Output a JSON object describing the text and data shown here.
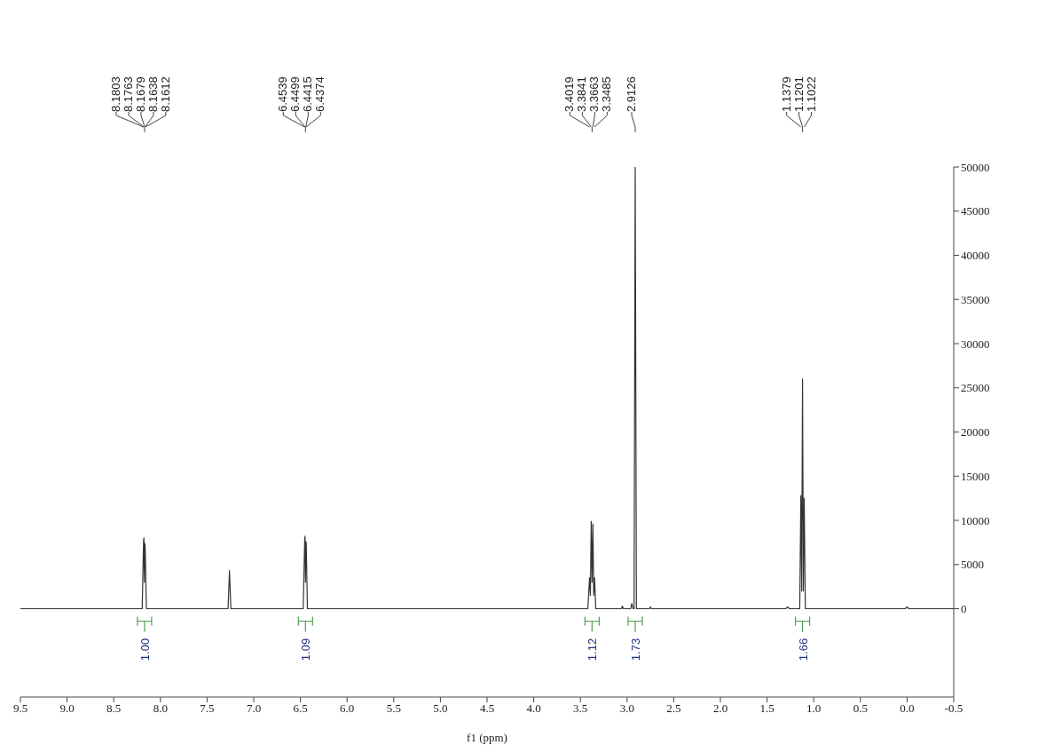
{
  "chart_data": {
    "type": "line",
    "xlabel": "f1 (ppm)",
    "x": [
      9.5,
      8.195,
      8.1803,
      8.1763,
      8.1718,
      8.1679,
      8.1638,
      8.1612,
      8.15,
      7.275,
      7.26,
      7.245,
      6.47,
      6.4539,
      6.4499,
      6.4457,
      6.4415,
      6.4374,
      6.425,
      3.42,
      3.4019,
      3.393,
      3.3841,
      3.375,
      3.3663,
      3.357,
      3.3485,
      3.335,
      3.06,
      3.05,
      3.04,
      2.96,
      2.95,
      2.935,
      2.925,
      2.9126,
      2.9,
      2.76,
      2.75,
      2.74,
      1.3,
      1.28,
      1.26,
      1.15,
      1.1379,
      1.129,
      1.1201,
      1.111,
      1.1022,
      1.09,
      0.02,
      0,
      -0.02,
      -0.5
    ],
    "series": [
      {
        "color": "#333333",
        "values": [
          0,
          0,
          7700,
          8000,
          3000,
          7400,
          7200,
          6000,
          0,
          0,
          4300,
          0,
          0,
          7800,
          8200,
          3000,
          7600,
          7400,
          0,
          0,
          3500,
          1500,
          9900,
          3000,
          9600,
          1500,
          3500,
          0,
          0,
          300,
          0,
          0,
          600,
          0,
          0,
          50000,
          0,
          0,
          200,
          0,
          0,
          200,
          0,
          0,
          12800,
          2000,
          26000,
          2000,
          12500,
          0,
          0,
          200,
          0,
          0
        ]
      }
    ],
    "xlim": [
      9.5,
      -0.5
    ],
    "xticks": [
      9.5,
      {
        "value": 9,
        "label": "9.0"
      },
      8.5,
      {
        "value": 8,
        "label": "8.0"
      },
      7.5,
      {
        "value": 7,
        "label": "7.0"
      },
      6.5,
      {
        "value": 6,
        "label": "6.0"
      },
      5.5,
      {
        "value": 5,
        "label": "5.0"
      },
      4.5,
      {
        "value": 4,
        "label": "4.0"
      },
      3.5,
      {
        "value": 3,
        "label": "3.0"
      },
      2.5,
      {
        "value": 2,
        "label": "2.0"
      },
      1.5,
      {
        "value": 1,
        "label": "1.0"
      },
      0.5,
      {
        "value": 0,
        "label": "0.0"
      },
      -0.5
    ],
    "ylim": [
      -10000,
      50000
    ],
    "yticks": [
      0,
      5000,
      10000,
      15000,
      20000,
      25000,
      30000,
      35000,
      40000,
      45000,
      50000
    ],
    "grid": false,
    "marker": "none",
    "line_style": "solid",
    "annotations": [
      {
        "text": "8.1803",
        "x": 8.1803
      },
      {
        "text": "8.1763",
        "x": 8.1763
      },
      {
        "text": "8.1679",
        "x": 8.1679
      },
      {
        "text": "8.1638",
        "x": 8.1638
      },
      {
        "text": "8.1612",
        "x": 8.1612
      },
      {
        "text": "6.4539",
        "x": 6.4539
      },
      {
        "text": "6.4499",
        "x": 6.4499
      },
      {
        "text": "6.4415",
        "x": 6.4415
      },
      {
        "text": "6.4374",
        "x": 6.4374
      },
      {
        "text": "3.4019",
        "x": 3.4019
      },
      {
        "text": "3.3841",
        "x": 3.3841
      },
      {
        "text": "3.3663",
        "x": 3.3663
      },
      {
        "text": "3.3485",
        "x": 3.3485
      },
      {
        "text": "2.9126",
        "x": 2.9126
      },
      {
        "text": "1.1379",
        "x": 1.1379
      },
      {
        "text": "1.1201",
        "x": 1.1201
      },
      {
        "text": "1.1022",
        "x": 1.1022
      },
      "1.00",
      "1.09",
      "1.12",
      "1.73",
      "1.66"
    ]
  }
}
